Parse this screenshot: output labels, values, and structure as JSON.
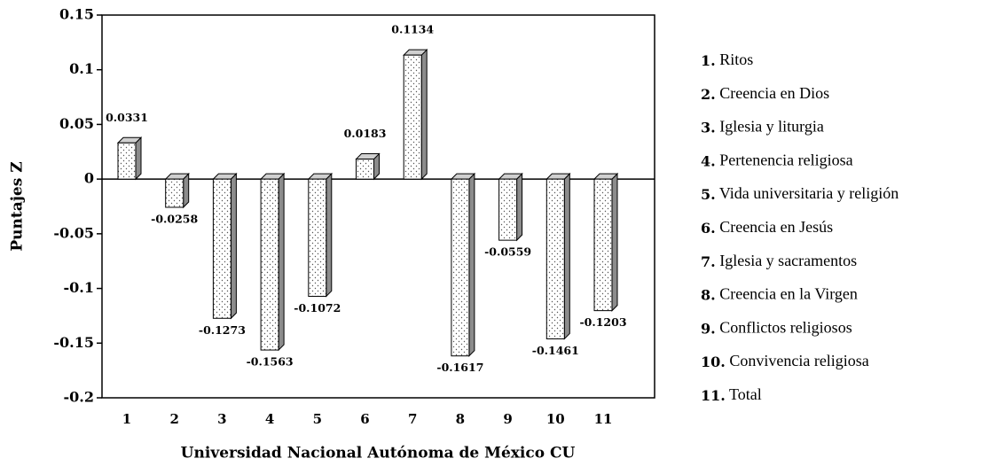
{
  "chart_data": {
    "type": "bar",
    "ylabel": "Puntajes Z",
    "xlabel": "Universidad Nacional Autónoma de México CU",
    "categories": [
      "1",
      "2",
      "3",
      "4",
      "5",
      "6",
      "7",
      "8",
      "9",
      "10",
      "11"
    ],
    "values": [
      0.0331,
      -0.0258,
      -0.1273,
      -0.1563,
      -0.1072,
      0.0183,
      0.1134,
      -0.1617,
      -0.0559,
      -0.1461,
      -0.1203
    ],
    "color": "#ffffff",
    "ylim": [
      -0.2,
      0.15
    ],
    "yticks": [
      -0.2,
      -0.15,
      -0.1,
      -0.05,
      0,
      0.05,
      0.1,
      0.15
    ],
    "grid": false,
    "legend_position": "right",
    "legend": [
      {
        "key": "1.",
        "label": "Ritos"
      },
      {
        "key": "2.",
        "label": "Creencia en Dios"
      },
      {
        "key": "3.",
        "label": "Iglesia y liturgia"
      },
      {
        "key": "4.",
        "label": "Pertenencia religiosa"
      },
      {
        "key": "5.",
        "label": "Vida universitaria y religión"
      },
      {
        "key": "6.",
        "label": "Creencia en Jesús"
      },
      {
        "key": "7.",
        "label": "Iglesia y sacramentos"
      },
      {
        "key": "8.",
        "label": "Creencia en la Virgen"
      },
      {
        "key": "9.",
        "label": "Conflictos religiosos"
      },
      {
        "key": "10.",
        "label": "Convivencia religiosa"
      },
      {
        "key": "11.",
        "label": "Total"
      }
    ]
  }
}
